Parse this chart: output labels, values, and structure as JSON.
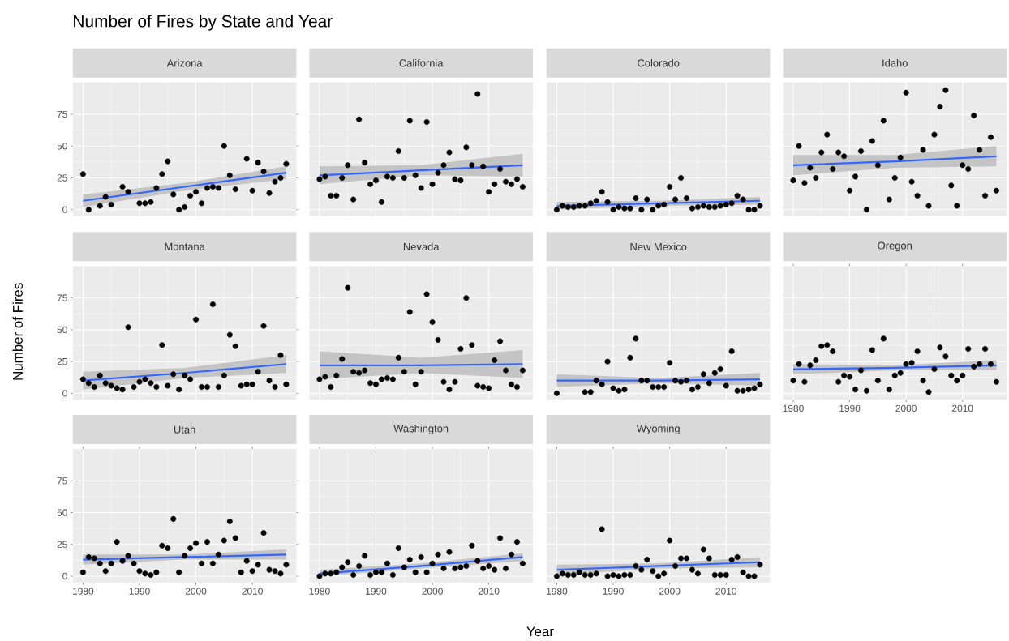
{
  "chart_data": [
    {
      "type": "scatter",
      "title": "Arizona",
      "annotations": [
        "Number of Fires by State and Year"
      ],
      "xlim": [
        1978.2,
        2017.8
      ],
      "ylim": [
        -5,
        100
      ],
      "xticks": [
        1980,
        1990,
        2000,
        2010
      ],
      "yticks": [
        0,
        25,
        50,
        75
      ],
      "grid": true,
      "tick_labels": "y",
      "series": [
        {
          "marker": "circle",
          "color": "#000000",
          "x": [
            1980,
            1981,
            1983,
            1984,
            1985,
            1987,
            1988,
            1990,
            1991,
            1992,
            1993,
            1994,
            1995,
            1996,
            1997,
            1998,
            1999,
            2000,
            2001,
            2002,
            2003,
            2004,
            2005,
            2006,
            2007,
            2009,
            2010,
            2011,
            2012,
            2013,
            2014,
            2015,
            2016
          ],
          "values": [
            28,
            0,
            3,
            10,
            4,
            18,
            14,
            5,
            5,
            6,
            17,
            28,
            38,
            12,
            0,
            2,
            11,
            14,
            5,
            17,
            18,
            17,
            50,
            27,
            16,
            40,
            15,
            37,
            30,
            13,
            22,
            25,
            36
          ]
        },
        {
          "type": "line",
          "marker": "none",
          "color": "#3366ff",
          "x": [
            1980,
            1998,
            2016
          ],
          "values": [
            7,
            18,
            29
          ],
          "lower": [
            2,
            15,
            24
          ],
          "upper": [
            12,
            21,
            34
          ]
        }
      ]
    },
    {
      "type": "scatter",
      "title": "California",
      "xlim": [
        1978.2,
        2017.8
      ],
      "ylim": [
        -5,
        100
      ],
      "xticks": [
        1980,
        1990,
        2000,
        2010
      ],
      "yticks": [
        0,
        25,
        50,
        75
      ],
      "grid": true,
      "tick_labels": false,
      "series": [
        {
          "type": "scatter",
          "marker": "circle",
          "color": "#000000",
          "x": [
            1980,
            1981,
            1982,
            1983,
            1984,
            1985,
            1986,
            1987,
            1988,
            1989,
            1990,
            1991,
            1992,
            1993,
            1994,
            1995,
            1996,
            1997,
            1998,
            1999,
            2000,
            2001,
            2002,
            2003,
            2004,
            2005,
            2006,
            2007,
            2008,
            2009,
            2010,
            2011,
            2012,
            2013,
            2014,
            2015,
            2016
          ],
          "values": [
            24,
            26,
            11,
            11,
            25,
            35,
            8,
            71,
            37,
            20,
            23,
            6,
            26,
            25,
            46,
            25,
            70,
            27,
            17,
            69,
            20,
            29,
            35,
            45,
            24,
            23,
            49,
            35,
            91,
            34,
            14,
            20,
            32,
            22,
            20,
            24,
            18
          ]
        },
        {
          "type": "line",
          "marker": "none",
          "color": "#3366ff",
          "x": [
            1980,
            1998,
            2016
          ],
          "values": [
            27,
            31,
            35
          ],
          "lower": [
            20,
            27,
            26
          ],
          "upper": [
            34,
            35,
            44
          ]
        }
      ]
    },
    {
      "type": "scatter",
      "title": "Colorado",
      "xlim": [
        1978.2,
        2017.8
      ],
      "ylim": [
        -5,
        100
      ],
      "xticks": [
        1980,
        1990,
        2000,
        2010
      ],
      "yticks": [
        0,
        25,
        50,
        75
      ],
      "grid": true,
      "tick_labels": false,
      "series": [
        {
          "type": "scatter",
          "marker": "circle",
          "color": "#000000",
          "x": [
            1980,
            1981,
            1982,
            1983,
            1984,
            1985,
            1986,
            1987,
            1988,
            1989,
            1990,
            1991,
            1992,
            1993,
            1994,
            1995,
            1996,
            1997,
            1998,
            1999,
            2000,
            2001,
            2002,
            2003,
            2004,
            2005,
            2006,
            2007,
            2008,
            2009,
            2010,
            2011,
            2012,
            2013,
            2014,
            2015,
            2016
          ],
          "values": [
            0,
            3,
            2,
            2,
            3,
            3,
            5,
            7,
            14,
            6,
            0,
            2,
            1,
            1,
            9,
            0,
            8,
            0,
            3,
            4,
            18,
            8,
            25,
            9,
            1,
            2,
            3,
            2,
            2,
            3,
            4,
            5,
            11,
            8,
            0,
            0,
            3
          ]
        },
        {
          "type": "line",
          "marker": "none",
          "color": "#3366ff",
          "x": [
            1980,
            1998,
            2016
          ],
          "values": [
            3,
            5,
            7
          ],
          "lower": [
            0,
            3,
            4
          ],
          "upper": [
            6,
            7,
            10
          ]
        }
      ]
    },
    {
      "type": "scatter",
      "title": "Idaho",
      "xlim": [
        1978.2,
        2017.8
      ],
      "ylim": [
        -5,
        100
      ],
      "xticks": [
        1980,
        1990,
        2000,
        2010
      ],
      "yticks": [
        0,
        25,
        50,
        75
      ],
      "grid": true,
      "tick_labels": false,
      "series": [
        {
          "type": "scatter",
          "marker": "circle",
          "color": "#000000",
          "x": [
            1980,
            1981,
            1982,
            1983,
            1984,
            1985,
            1986,
            1987,
            1988,
            1989,
            1990,
            1991,
            1992,
            1993,
            1994,
            1995,
            1996,
            1997,
            1998,
            1999,
            2000,
            2001,
            2002,
            2003,
            2004,
            2005,
            2006,
            2007,
            2008,
            2009,
            2010,
            2011,
            2012,
            2013,
            2014,
            2015,
            2016
          ],
          "values": [
            23,
            50,
            21,
            33,
            25,
            45,
            59,
            32,
            45,
            42,
            15,
            26,
            46,
            0,
            54,
            35,
            70,
            8,
            25,
            41,
            92,
            22,
            11,
            47,
            3,
            59,
            81,
            94,
            19,
            3,
            35,
            32,
            74,
            47,
            11,
            57,
            15
          ]
        },
        {
          "type": "line",
          "marker": "none",
          "color": "#3366ff",
          "x": [
            1980,
            1998,
            2016
          ],
          "values": [
            35,
            38,
            42
          ],
          "lower": [
            27,
            33,
            34
          ],
          "upper": [
            43,
            43,
            50
          ]
        }
      ]
    },
    {
      "type": "scatter",
      "title": "Montana",
      "ylabel": "Number of Fires",
      "xlim": [
        1978.2,
        2017.8
      ],
      "ylim": [
        -5,
        100
      ],
      "xticks": [
        1980,
        1990,
        2000,
        2010
      ],
      "yticks": [
        0,
        25,
        50,
        75
      ],
      "grid": true,
      "tick_labels": "y",
      "series": [
        {
          "type": "scatter",
          "marker": "circle",
          "color": "#000000",
          "x": [
            1980,
            1981,
            1982,
            1983,
            1984,
            1985,
            1986,
            1987,
            1988,
            1989,
            1990,
            1991,
            1992,
            1993,
            1994,
            1995,
            1996,
            1997,
            1998,
            1999,
            2000,
            2001,
            2002,
            2003,
            2004,
            2005,
            2006,
            2007,
            2008,
            2009,
            2010,
            2011,
            2012,
            2013,
            2014,
            2015,
            2016
          ],
          "values": [
            11,
            8,
            5,
            14,
            8,
            6,
            4,
            3,
            52,
            5,
            9,
            11,
            8,
            5,
            38,
            6,
            15,
            3,
            14,
            11,
            58,
            5,
            5,
            70,
            5,
            14,
            46,
            37,
            6,
            7,
            7,
            17,
            53,
            10,
            5,
            30,
            7
          ]
        },
        {
          "type": "line",
          "marker": "none",
          "color": "#3366ff",
          "x": [
            1980,
            1998,
            2016
          ],
          "values": [
            10,
            16,
            23
          ],
          "lower": [
            3,
            12,
            16
          ],
          "upper": [
            17,
            20,
            30
          ]
        }
      ]
    },
    {
      "type": "scatter",
      "title": "Nevada",
      "xlim": [
        1978.2,
        2017.8
      ],
      "ylim": [
        -5,
        100
      ],
      "xticks": [
        1980,
        1990,
        2000,
        2010
      ],
      "yticks": [
        0,
        25,
        50,
        75
      ],
      "grid": true,
      "tick_labels": false,
      "series": [
        {
          "type": "scatter",
          "marker": "circle",
          "color": "#000000",
          "x": [
            1980,
            1981,
            1982,
            1983,
            1984,
            1985,
            1986,
            1987,
            1988,
            1989,
            1990,
            1991,
            1992,
            1993,
            1994,
            1995,
            1996,
            1997,
            1998,
            1999,
            2000,
            2001,
            2002,
            2003,
            2004,
            2005,
            2006,
            2007,
            2008,
            2009,
            2010,
            2011,
            2012,
            2013,
            2014,
            2015,
            2016
          ],
          "values": [
            11,
            13,
            5,
            14,
            27,
            83,
            17,
            16,
            18,
            8,
            7,
            11,
            12,
            11,
            28,
            17,
            64,
            7,
            17,
            78,
            56,
            42,
            9,
            3,
            9,
            35,
            75,
            38,
            6,
            5,
            4,
            26,
            41,
            18,
            7,
            5,
            18
          ]
        },
        {
          "type": "line",
          "marker": "none",
          "color": "#3366ff",
          "x": [
            1980,
            1998,
            2016
          ],
          "values": [
            22,
            22,
            23
          ],
          "lower": [
            11,
            16,
            12
          ],
          "upper": [
            33,
            28,
            34
          ]
        }
      ]
    },
    {
      "type": "scatter",
      "title": "New Mexico",
      "xlim": [
        1978.2,
        2017.8
      ],
      "ylim": [
        -5,
        100
      ],
      "xticks": [
        1980,
        1990,
        2000,
        2010
      ],
      "yticks": [
        0,
        25,
        50,
        75
      ],
      "grid": true,
      "tick_labels": false,
      "series": [
        {
          "type": "scatter",
          "marker": "circle",
          "color": "#000000",
          "x": [
            1980,
            1985,
            1986,
            1987,
            1988,
            1989,
            1990,
            1991,
            1992,
            1993,
            1994,
            1995,
            1996,
            1997,
            1998,
            1999,
            2000,
            2001,
            2002,
            2003,
            2004,
            2005,
            2006,
            2007,
            2008,
            2009,
            2010,
            2011,
            2012,
            2013,
            2014,
            2015,
            2016
          ],
          "values": [
            0,
            1,
            1,
            10,
            7,
            25,
            4,
            2,
            3,
            28,
            43,
            10,
            10,
            5,
            5,
            5,
            24,
            10,
            9,
            10,
            3,
            5,
            15,
            8,
            16,
            19,
            6,
            33,
            2,
            2,
            3,
            4,
            7
          ]
        },
        {
          "type": "line",
          "marker": "none",
          "color": "#3366ff",
          "x": [
            1980,
            1998,
            2016
          ],
          "values": [
            10,
            10,
            11
          ],
          "lower": [
            5,
            8,
            6
          ],
          "upper": [
            15,
            12,
            16
          ]
        }
      ]
    },
    {
      "type": "scatter",
      "title": "Oregon",
      "xlim": [
        1978.2,
        2017.8
      ],
      "ylim": [
        -5,
        100
      ],
      "xticks": [
        1980,
        1990,
        2000,
        2010
      ],
      "yticks": [
        0,
        25,
        50,
        75
      ],
      "grid": true,
      "tick_labels": "x",
      "series": [
        {
          "type": "scatter",
          "marker": "circle",
          "color": "#000000",
          "x": [
            1980,
            1981,
            1982,
            1983,
            1984,
            1985,
            1986,
            1987,
            1988,
            1989,
            1990,
            1991,
            1992,
            1993,
            1994,
            1995,
            1996,
            1997,
            1998,
            1999,
            2000,
            2001,
            2002,
            2003,
            2004,
            2005,
            2006,
            2007,
            2008,
            2009,
            2010,
            2011,
            2012,
            2013,
            2014,
            2015,
            2016
          ],
          "values": [
            10,
            23,
            9,
            22,
            26,
            37,
            38,
            33,
            9,
            14,
            13,
            3,
            18,
            2,
            34,
            10,
            43,
            3,
            14,
            16,
            23,
            24,
            33,
            10,
            1,
            19,
            36,
            29,
            14,
            10,
            14,
            35,
            21,
            23,
            35,
            23,
            9
          ]
        },
        {
          "type": "line",
          "marker": "none",
          "color": "#3366ff",
          "x": [
            1980,
            1998,
            2016
          ],
          "values": [
            19,
            20,
            22
          ],
          "lower": [
            15,
            18,
            18
          ],
          "upper": [
            23,
            22,
            26
          ]
        }
      ]
    },
    {
      "type": "scatter",
      "title": "Utah",
      "xlim": [
        1978.2,
        2017.8
      ],
      "ylim": [
        -5,
        100
      ],
      "xticks": [
        1980,
        1990,
        2000,
        2010
      ],
      "yticks": [
        0,
        25,
        50,
        75
      ],
      "grid": true,
      "series": [
        {
          "type": "scatter",
          "marker": "circle",
          "color": "#000000",
          "x": [
            1980,
            1981,
            1982,
            1983,
            1984,
            1985,
            1986,
            1987,
            1988,
            1989,
            1990,
            1991,
            1992,
            1993,
            1994,
            1995,
            1996,
            1997,
            1998,
            1999,
            2000,
            2001,
            2002,
            2003,
            2004,
            2005,
            2006,
            2007,
            2008,
            2009,
            2010,
            2011,
            2012,
            2013,
            2014,
            2015,
            2016
          ],
          "values": [
            3,
            15,
            14,
            10,
            4,
            10,
            27,
            12,
            16,
            10,
            4,
            2,
            1,
            3,
            24,
            22,
            45,
            3,
            16,
            22,
            26,
            10,
            27,
            10,
            17,
            28,
            43,
            30,
            3,
            12,
            4,
            9,
            34,
            5,
            4,
            2,
            9
          ]
        },
        {
          "type": "line",
          "marker": "none",
          "color": "#3366ff",
          "x": [
            1980,
            1998,
            2016
          ],
          "values": [
            13,
            15,
            17
          ],
          "lower": [
            9,
            13,
            13
          ],
          "upper": [
            17,
            17,
            21
          ]
        }
      ]
    },
    {
      "type": "scatter",
      "title": "Washington",
      "xlabel": "Year",
      "xlim": [
        1978.2,
        2017.8
      ],
      "ylim": [
        -5,
        100
      ],
      "xticks": [
        1980,
        1990,
        2000,
        2010
      ],
      "yticks": [
        0,
        25,
        50,
        75
      ],
      "grid": true,
      "tick_labels": "x",
      "series": [
        {
          "type": "scatter",
          "marker": "circle",
          "color": "#000000",
          "x": [
            1980,
            1981,
            1982,
            1983,
            1984,
            1985,
            1986,
            1987,
            1988,
            1989,
            1990,
            1991,
            1992,
            1993,
            1994,
            1995,
            1996,
            1997,
            1998,
            1999,
            2000,
            2001,
            2002,
            2003,
            2004,
            2005,
            2006,
            2007,
            2008,
            2009,
            2010,
            2011,
            2012,
            2013,
            2014,
            2015,
            2016
          ],
          "values": [
            0,
            2,
            2,
            3,
            7,
            11,
            1,
            8,
            16,
            1,
            3,
            3,
            10,
            1,
            22,
            7,
            13,
            3,
            15,
            3,
            10,
            17,
            6,
            19,
            6,
            7,
            8,
            24,
            12,
            6,
            8,
            5,
            30,
            6,
            17,
            27,
            10
          ]
        },
        {
          "type": "line",
          "marker": "none",
          "color": "#3366ff",
          "x": [
            1980,
            1998,
            2016
          ],
          "values": [
            2,
            8,
            15
          ],
          "lower": [
            0,
            6,
            12
          ],
          "upper": [
            5,
            10,
            18
          ]
        }
      ]
    },
    {
      "type": "scatter",
      "title": "Wyoming",
      "xlim": [
        1978.2,
        2017.8
      ],
      "ylim": [
        -5,
        100
      ],
      "xticks": [
        1980,
        1990,
        2000,
        2010
      ],
      "yticks": [
        0,
        25,
        50,
        75
      ],
      "grid": true,
      "tick_labels": "x",
      "series": [
        {
          "type": "scatter",
          "marker": "circle",
          "color": "#000000",
          "x": [
            1980,
            1981,
            1982,
            1983,
            1984,
            1985,
            1986,
            1987,
            1988,
            1989,
            1990,
            1991,
            1992,
            1993,
            1994,
            1995,
            1996,
            1997,
            1998,
            1999,
            2000,
            2001,
            2002,
            2003,
            2004,
            2005,
            2006,
            2007,
            2008,
            2009,
            2010,
            2011,
            2012,
            2013,
            2014,
            2015,
            2016
          ],
          "values": [
            0,
            2,
            1,
            1,
            3,
            1,
            1,
            2,
            37,
            0,
            1,
            0,
            1,
            1,
            8,
            5,
            13,
            4,
            0,
            2,
            28,
            8,
            14,
            14,
            5,
            2,
            21,
            14,
            1,
            1,
            1,
            13,
            15,
            3,
            0,
            0,
            9
          ]
        },
        {
          "type": "line",
          "marker": "none",
          "color": "#3366ff",
          "x": [
            1980,
            1998,
            2016
          ],
          "values": [
            5,
            8,
            11
          ],
          "lower": [
            1,
            6,
            7
          ],
          "upper": [
            9,
            10,
            15
          ]
        }
      ]
    }
  ]
}
